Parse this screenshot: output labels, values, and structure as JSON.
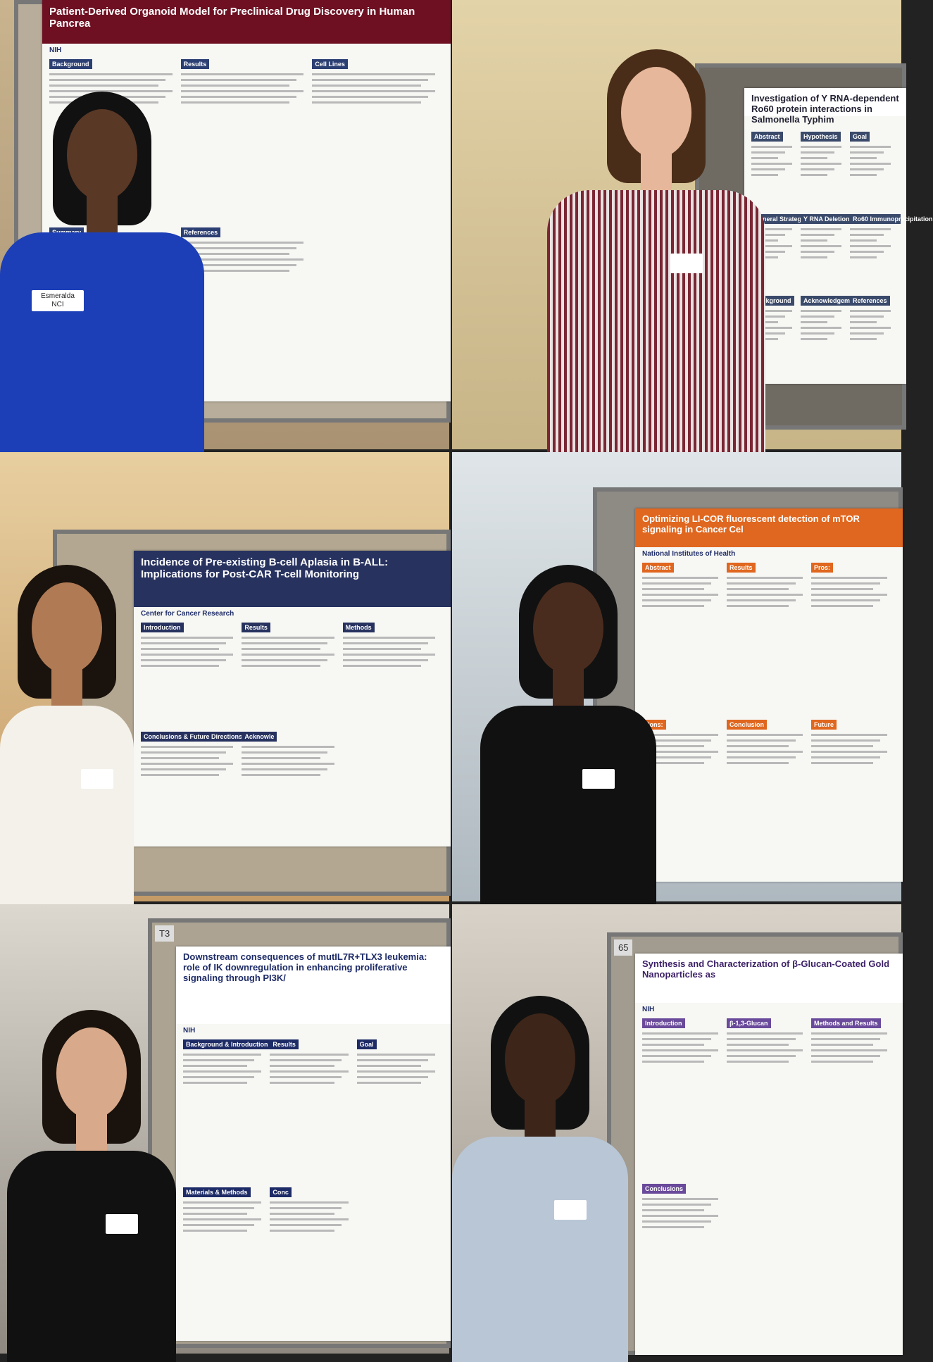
{
  "photos": [
    {
      "poster_title": "Patient-Derived Organoid Model for Preclinical Drug Discovery in Human Pancrea",
      "logo": "NIH",
      "sections": [
        "Background",
        "Results",
        "Cell Lines",
        "Summary",
        "References"
      ],
      "name_tag": [
        "Esmeralda",
        "NCI"
      ]
    },
    {
      "poster_title": "Investigation of Y RNA-dependent Ro60 protein interactions in Salmonella Typhim",
      "sections": [
        "Abstract",
        "Hypothesis",
        "Goal",
        "General Strategy",
        "Y RNA Deletion",
        "Ro60 Immunoprecipitation",
        "Background",
        "Acknowledgements",
        "References"
      ]
    },
    {
      "poster_title": "Incidence of Pre-existing B-cell Aplasia in B-ALL: Implications for Post-CAR T-cell Monitoring",
      "logo": "Center for Cancer Research",
      "sections": [
        "Introduction",
        "Results",
        "Methods",
        "Conclusions & Future Directions",
        "Acknowle"
      ]
    },
    {
      "poster_title": "Optimizing LI-COR fluorescent detection of mTOR signaling in Cancer Cel",
      "logo": "National Institutes of Health",
      "sections": [
        "Abstract",
        "Results",
        "Pros:",
        "Cons:",
        "Conclusion",
        "Future"
      ]
    },
    {
      "poster_title": "Downstream consequences of mutIL7R+TLX3 leukemia: role of IK downregulation in enhancing proliferative signaling through PI3K/",
      "logo": "NIH",
      "badge": "T3",
      "sections": [
        "Background & Introduction",
        "Results",
        "Goal",
        "Materials & Methods",
        "Conc"
      ]
    },
    {
      "poster_title": "Synthesis and Characterization of β-Glucan-Coated Gold Nanoparticles as",
      "logo": "NIH",
      "badge": "65",
      "sections": [
        "Introduction",
        "β-1,3-Glucan",
        "Methods and Results",
        "Conclusions"
      ]
    }
  ]
}
